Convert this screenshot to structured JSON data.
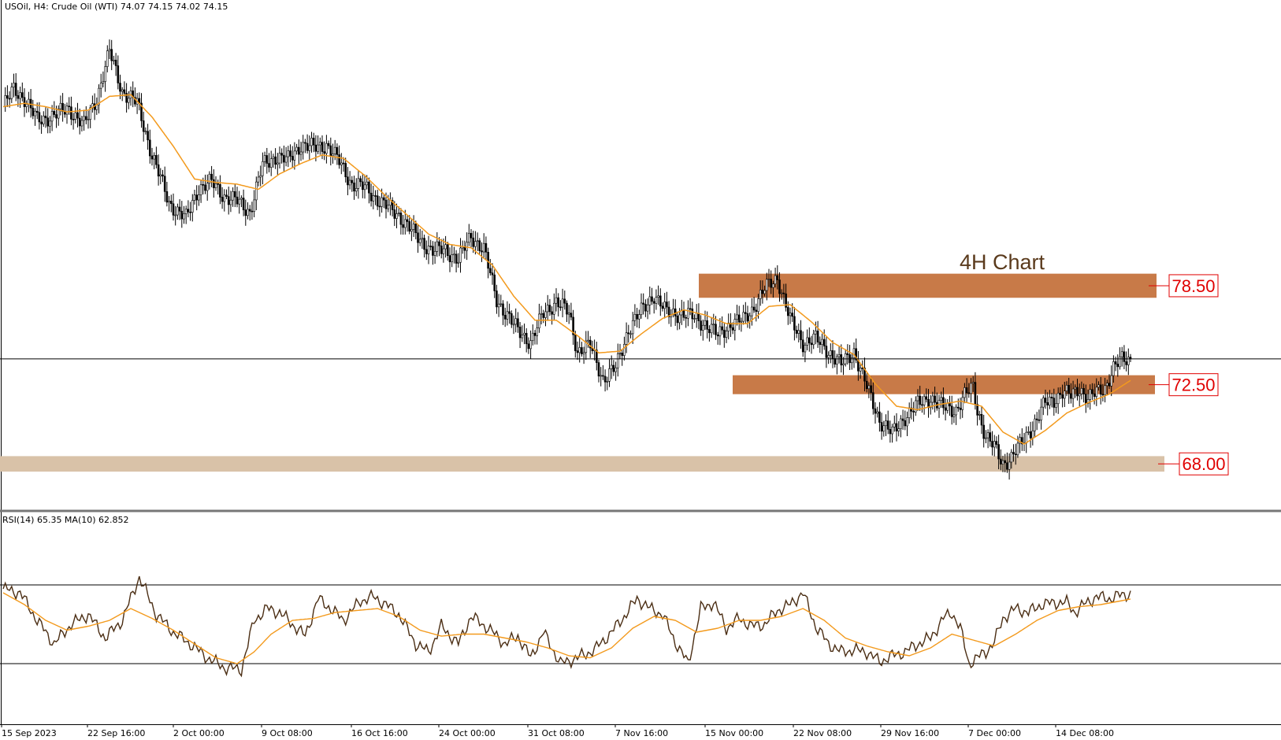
{
  "header": {
    "symbol_text": "USOil, H4:  Crude Oil (WTI)  74.07 74.15 74.02 74.15",
    "rsi_text": "RSI(14) 65.35 MA(10) 62.852"
  },
  "annotations": {
    "title": "4H Chart",
    "levels": [
      {
        "label": "78.50",
        "value": 78.5
      },
      {
        "label": "72.50",
        "value": 72.5
      },
      {
        "label": "68.00",
        "value": 68.0
      }
    ]
  },
  "colors": {
    "resistance_zone": "#c87a48",
    "support_zone": "#d9c2a8",
    "ma_line": "#f39a1d",
    "rsi_line": "#4b2e14",
    "candle": "#000000",
    "level_text": "#e00000",
    "level_border": "#e00000"
  },
  "chart_data": [
    {
      "type": "candlestick",
      "symbol": "USOil",
      "timeframe": "H4",
      "title": "4H Chart",
      "current_price": 74.15,
      "ohlc_last": {
        "open": 74.07,
        "high": 74.15,
        "low": 74.02,
        "close": 74.15
      },
      "x_tick_labels": [
        "15 Sep 2023",
        "22 Sep 16:00",
        "2 Oct 00:00",
        "9 Oct 08:00",
        "16 Oct 16:00",
        "24 Oct 00:00",
        "31 Oct 08:00",
        "7 Nov 16:00",
        "15 Nov 00:00",
        "22 Nov 08:00",
        "29 Nov 16:00",
        "7 Dec 00:00",
        "14 Dec 08:00"
      ],
      "ylim": [
        65.5,
        95.0
      ],
      "zones": [
        {
          "label": "78.50",
          "from": 77.7,
          "to": 79.1
        },
        {
          "label": "72.50",
          "from": 72.1,
          "to": 73.2
        },
        {
          "label": "68.00",
          "from": 67.6,
          "to": 68.5
        }
      ],
      "close_path": [
        [
          0,
          88.8
        ],
        [
          5,
          89.8
        ],
        [
          10,
          89.3
        ],
        [
          16,
          88.0
        ],
        [
          24,
          88.3
        ],
        [
          31,
          88.7
        ],
        [
          38,
          87.7
        ],
        [
          44,
          89.3
        ],
        [
          50,
          92.0
        ],
        [
          56,
          89.7
        ],
        [
          63,
          89.0
        ],
        [
          70,
          86.0
        ],
        [
          78,
          83.2
        ],
        [
          86,
          82.3
        ],
        [
          92,
          84.1
        ],
        [
          98,
          84.4
        ],
        [
          104,
          83.6
        ],
        [
          110,
          83.3
        ],
        [
          116,
          82.7
        ],
        [
          122,
          85.4
        ],
        [
          128,
          85.9
        ],
        [
          134,
          85.7
        ],
        [
          140,
          86.6
        ],
        [
          146,
          86.4
        ],
        [
          152,
          86.6
        ],
        [
          158,
          85.6
        ],
        [
          164,
          84.3
        ],
        [
          170,
          84.1
        ],
        [
          178,
          83.2
        ],
        [
          186,
          82.5
        ],
        [
          194,
          81.3
        ],
        [
          202,
          80.4
        ],
        [
          208,
          80.5
        ],
        [
          214,
          79.9
        ],
        [
          220,
          81.3
        ],
        [
          226,
          80.5
        ],
        [
          232,
          77.6
        ],
        [
          240,
          76.1
        ],
        [
          248,
          75.1
        ],
        [
          254,
          76.8
        ],
        [
          260,
          77.5
        ],
        [
          266,
          76.8
        ],
        [
          270,
          74.6
        ],
        [
          276,
          74.9
        ],
        [
          282,
          73.0
        ],
        [
          288,
          73.6
        ],
        [
          294,
          75.9
        ],
        [
          300,
          76.9
        ],
        [
          306,
          77.9
        ],
        [
          312,
          76.8
        ],
        [
          318,
          76.8
        ],
        [
          324,
          76.6
        ],
        [
          330,
          76.2
        ],
        [
          336,
          75.5
        ],
        [
          342,
          76.2
        ],
        [
          348,
          76.4
        ],
        [
          352,
          77.0
        ],
        [
          358,
          78.2
        ],
        [
          364,
          78.9
        ],
        [
          370,
          76.4
        ],
        [
          376,
          75.1
        ],
        [
          382,
          75.3
        ],
        [
          388,
          74.6
        ],
        [
          394,
          73.8
        ],
        [
          400,
          74.6
        ],
        [
          406,
          72.5
        ],
        [
          412,
          70.6
        ],
        [
          418,
          69.8
        ],
        [
          424,
          70.8
        ],
        [
          430,
          71.5
        ],
        [
          436,
          71.9
        ],
        [
          442,
          71.3
        ],
        [
          448,
          71.2
        ],
        [
          452,
          72.0
        ],
        [
          456,
          72.5
        ],
        [
          458,
          71.2
        ],
        [
          462,
          69.6
        ],
        [
          466,
          69.0
        ],
        [
          470,
          68.1
        ],
        [
          474,
          68.4
        ],
        [
          478,
          69.1
        ],
        [
          482,
          69.9
        ],
        [
          486,
          70.6
        ],
        [
          490,
          71.6
        ],
        [
          494,
          71.8
        ],
        [
          498,
          72.2
        ],
        [
          502,
          72.0
        ],
        [
          506,
          72.5
        ],
        [
          510,
          71.8
        ],
        [
          514,
          72.2
        ],
        [
          518,
          72.5
        ],
        [
          522,
          73.6
        ],
        [
          526,
          74.1
        ],
        [
          530,
          74.15
        ]
      ],
      "moving_average": [
        [
          0,
          88.8
        ],
        [
          10,
          89.0
        ],
        [
          20,
          88.8
        ],
        [
          30,
          88.5
        ],
        [
          40,
          88.6
        ],
        [
          50,
          89.4
        ],
        [
          60,
          89.5
        ],
        [
          70,
          88.2
        ],
        [
          80,
          86.5
        ],
        [
          90,
          84.6
        ],
        [
          100,
          84.4
        ],
        [
          110,
          84.3
        ],
        [
          120,
          84.0
        ],
        [
          130,
          84.9
        ],
        [
          140,
          85.5
        ],
        [
          150,
          86.0
        ],
        [
          160,
          85.8
        ],
        [
          170,
          84.8
        ],
        [
          180,
          83.6
        ],
        [
          190,
          82.5
        ],
        [
          200,
          81.4
        ],
        [
          210,
          80.8
        ],
        [
          220,
          80.6
        ],
        [
          230,
          79.6
        ],
        [
          240,
          77.8
        ],
        [
          250,
          76.4
        ],
        [
          260,
          76.4
        ],
        [
          270,
          75.5
        ],
        [
          280,
          74.5
        ],
        [
          290,
          74.6
        ],
        [
          300,
          75.6
        ],
        [
          310,
          76.5
        ],
        [
          320,
          77.0
        ],
        [
          330,
          76.7
        ],
        [
          340,
          76.2
        ],
        [
          350,
          76.2
        ],
        [
          360,
          77.2
        ],
        [
          370,
          77.3
        ],
        [
          380,
          76.3
        ],
        [
          390,
          75.1
        ],
        [
          400,
          74.4
        ],
        [
          410,
          72.7
        ],
        [
          420,
          71.4
        ],
        [
          430,
          71.2
        ],
        [
          440,
          71.5
        ],
        [
          450,
          71.7
        ],
        [
          460,
          71.4
        ],
        [
          470,
          69.9
        ],
        [
          480,
          69.2
        ],
        [
          490,
          70.0
        ],
        [
          500,
          71.0
        ],
        [
          510,
          71.6
        ],
        [
          520,
          72.1
        ],
        [
          530,
          72.9
        ]
      ]
    },
    {
      "type": "line",
      "title": "RSI(14) 65.35 MA(10) 62.852",
      "ylim": [
        0,
        100
      ],
      "levels": [
        70,
        30
      ],
      "series": [
        {
          "name": "RSI(14)",
          "points": [
            [
              0,
              68
            ],
            [
              8,
              66
            ],
            [
              16,
              52
            ],
            [
              24,
              40
            ],
            [
              32,
              50
            ],
            [
              40,
              55
            ],
            [
              48,
              43
            ],
            [
              56,
              52
            ],
            [
              64,
              74
            ],
            [
              72,
              55
            ],
            [
              80,
              46
            ],
            [
              88,
              40
            ],
            [
              96,
              33
            ],
            [
              104,
              28
            ],
            [
              112,
              27
            ],
            [
              118,
              52
            ],
            [
              124,
              58
            ],
            [
              130,
              56
            ],
            [
              136,
              50
            ],
            [
              142,
              44
            ],
            [
              148,
              63
            ],
            [
              154,
              58
            ],
            [
              160,
              52
            ],
            [
              168,
              62
            ],
            [
              174,
              64
            ],
            [
              180,
              60
            ],
            [
              186,
              55
            ],
            [
              194,
              40
            ],
            [
              200,
              36
            ],
            [
              206,
              49
            ],
            [
              214,
              40
            ],
            [
              220,
              54
            ],
            [
              228,
              48
            ],
            [
              236,
              40
            ],
            [
              242,
              44
            ],
            [
              248,
              33
            ],
            [
              254,
              46
            ],
            [
              262,
              30
            ],
            [
              270,
              33
            ],
            [
              278,
              37
            ],
            [
              286,
              46
            ],
            [
              292,
              54
            ],
            [
              298,
              63
            ],
            [
              304,
              58
            ],
            [
              310,
              55
            ],
            [
              316,
              41
            ],
            [
              322,
              30
            ],
            [
              328,
              58
            ],
            [
              334,
              61
            ],
            [
              340,
              48
            ],
            [
              346,
              53
            ],
            [
              352,
              49
            ],
            [
              358,
              50
            ],
            [
              364,
              57
            ],
            [
              370,
              60
            ],
            [
              376,
              66
            ],
            [
              382,
              49
            ],
            [
              388,
              40
            ],
            [
              394,
              36
            ],
            [
              400,
              37
            ],
            [
              406,
              36
            ],
            [
              412,
              31
            ],
            [
              418,
              34
            ],
            [
              424,
              36
            ],
            [
              430,
              40
            ],
            [
              436,
              43
            ],
            [
              442,
              53
            ],
            [
              446,
              56
            ],
            [
              450,
              48
            ],
            [
              454,
              30
            ],
            [
              458,
              33
            ],
            [
              462,
              36
            ],
            [
              466,
              41
            ],
            [
              470,
              53
            ],
            [
              476,
              58
            ],
            [
              482,
              56
            ],
            [
              488,
              60
            ],
            [
              494,
              61
            ],
            [
              500,
              61
            ],
            [
              504,
              56
            ],
            [
              508,
              60
            ],
            [
              514,
              64
            ],
            [
              520,
              63
            ],
            [
              526,
              65
            ],
            [
              530,
              65.35
            ]
          ]
        },
        {
          "name": "MA(10)",
          "points": [
            [
              0,
              66
            ],
            [
              10,
              60
            ],
            [
              20,
              52
            ],
            [
              30,
              47
            ],
            [
              40,
              49
            ],
            [
              50,
              52
            ],
            [
              60,
              58
            ],
            [
              70,
              53
            ],
            [
              80,
              47
            ],
            [
              90,
              40
            ],
            [
              100,
              33
            ],
            [
              110,
              30
            ],
            [
              118,
              36
            ],
            [
              126,
              45
            ],
            [
              136,
              52
            ],
            [
              146,
              53
            ],
            [
              156,
              56
            ],
            [
              166,
              57
            ],
            [
              176,
              58
            ],
            [
              186,
              54
            ],
            [
              196,
              47
            ],
            [
              206,
              44
            ],
            [
              216,
              45
            ],
            [
              226,
              45
            ],
            [
              236,
              43
            ],
            [
              246,
              41
            ],
            [
              256,
              38
            ],
            [
              266,
              34
            ],
            [
              276,
              33
            ],
            [
              286,
              38
            ],
            [
              296,
              48
            ],
            [
              306,
              54
            ],
            [
              316,
              52
            ],
            [
              326,
              46
            ],
            [
              336,
              48
            ],
            [
              346,
              52
            ],
            [
              356,
              52
            ],
            [
              366,
              54
            ],
            [
              376,
              58
            ],
            [
              386,
              52
            ],
            [
              396,
              43
            ],
            [
              406,
              39
            ],
            [
              416,
              36
            ],
            [
              426,
              34
            ],
            [
              436,
              38
            ],
            [
              446,
              45
            ],
            [
              456,
              42
            ],
            [
              466,
              39
            ],
            [
              476,
              45
            ],
            [
              486,
              52
            ],
            [
              496,
              57
            ],
            [
              506,
              59
            ],
            [
              516,
              60
            ],
            [
              526,
              62
            ],
            [
              530,
              62.852
            ]
          ]
        }
      ]
    }
  ]
}
